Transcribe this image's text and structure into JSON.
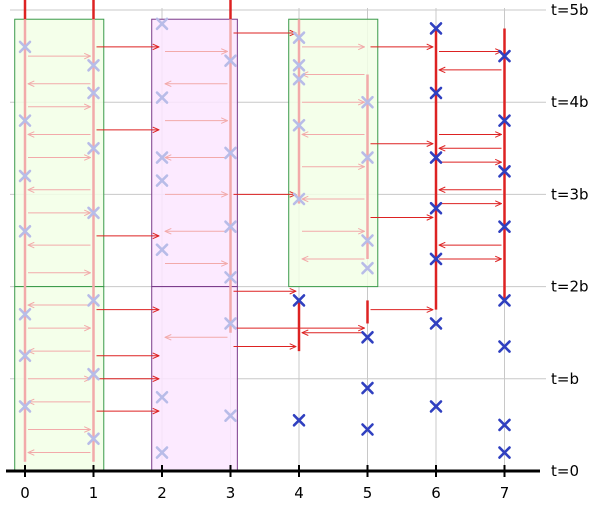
{
  "diagram": {
    "x_axis": {
      "ticks": [
        "0",
        "1",
        "2",
        "3",
        "4",
        "5",
        "6",
        "7"
      ],
      "range": [
        -0.2,
        7.3
      ]
    },
    "time_axis": {
      "labels": [
        {
          "t": 0,
          "text": "t=0"
        },
        {
          "t": 1,
          "text": "t=b"
        },
        {
          "t": 2,
          "text": "t=2b"
        },
        {
          "t": 3,
          "text": "t=3b"
        },
        {
          "t": 4,
          "text": "t=4b"
        },
        {
          "t": 5,
          "text": "t=5b"
        }
      ],
      "range": [
        0,
        5.25
      ]
    },
    "colors": {
      "green_box_fill": "#f2ffe6",
      "green_box_stroke": "#3a9a4a",
      "magenta_box_fill": "#fbe6ff",
      "magenta_box_stroke": "#7a3a8a",
      "event_marker": "#3040c0",
      "event_marker_faded": "#b8bce8",
      "token_line": "#dd2222",
      "token_line_faded": "#f2aaaa",
      "grid": "#c8c8c8",
      "axis": "#000000"
    },
    "boxes": [
      {
        "kind": "green",
        "x0": -0.15,
        "x1": 1.15,
        "t0": 2.0,
        "t1": 4.9
      },
      {
        "kind": "green",
        "x0": -0.15,
        "x1": 1.15,
        "t0": 0.0,
        "t1": 2.0
      },
      {
        "kind": "magenta",
        "x0": 1.85,
        "x1": 3.1,
        "t0": 2.0,
        "t1": 4.9
      },
      {
        "kind": "magenta",
        "x0": 1.85,
        "x1": 3.1,
        "t0": 0.0,
        "t1": 2.0
      },
      {
        "kind": "green",
        "x0": 3.85,
        "x1": 5.15,
        "t0": 2.0,
        "t1": 4.9
      }
    ],
    "events": [
      {
        "x": 0,
        "t": 4.6,
        "faded": true
      },
      {
        "x": 0,
        "t": 3.8,
        "faded": true
      },
      {
        "x": 0,
        "t": 3.2,
        "faded": true
      },
      {
        "x": 0,
        "t": 2.6,
        "faded": true
      },
      {
        "x": 0,
        "t": 1.7,
        "faded": true
      },
      {
        "x": 0,
        "t": 1.25,
        "faded": true
      },
      {
        "x": 0,
        "t": 0.7,
        "faded": true
      },
      {
        "x": 1,
        "t": 4.4,
        "faded": true
      },
      {
        "x": 1,
        "t": 4.1,
        "faded": true
      },
      {
        "x": 1,
        "t": 3.5,
        "faded": true
      },
      {
        "x": 1,
        "t": 2.8,
        "faded": true
      },
      {
        "x": 1,
        "t": 1.85,
        "faded": true
      },
      {
        "x": 1,
        "t": 1.05,
        "faded": true
      },
      {
        "x": 1,
        "t": 0.35,
        "faded": true
      },
      {
        "x": 2,
        "t": 4.85,
        "faded": true
      },
      {
        "x": 2,
        "t": 4.05,
        "faded": true
      },
      {
        "x": 2,
        "t": 3.4,
        "faded": true
      },
      {
        "x": 2,
        "t": 3.15,
        "faded": true
      },
      {
        "x": 2,
        "t": 2.4,
        "faded": true
      },
      {
        "x": 2,
        "t": 0.8,
        "faded": true
      },
      {
        "x": 2,
        "t": 0.2,
        "faded": true
      },
      {
        "x": 3,
        "t": 4.45,
        "faded": true
      },
      {
        "x": 3,
        "t": 3.45,
        "faded": true
      },
      {
        "x": 3,
        "t": 2.65,
        "faded": true
      },
      {
        "x": 3,
        "t": 2.1,
        "faded": true
      },
      {
        "x": 3,
        "t": 1.6,
        "faded": true
      },
      {
        "x": 3,
        "t": 0.6,
        "faded": true
      },
      {
        "x": 4,
        "t": 4.7,
        "faded": true
      },
      {
        "x": 4,
        "t": 4.4,
        "faded": true
      },
      {
        "x": 4,
        "t": 4.25,
        "faded": true
      },
      {
        "x": 4,
        "t": 3.75,
        "faded": true
      },
      {
        "x": 4,
        "t": 2.95,
        "faded": true
      },
      {
        "x": 5,
        "t": 4.0,
        "faded": true
      },
      {
        "x": 5,
        "t": 3.4,
        "faded": true
      },
      {
        "x": 5,
        "t": 2.5,
        "faded": true
      },
      {
        "x": 5,
        "t": 2.2,
        "faded": true
      },
      {
        "x": 4,
        "t": 1.85,
        "faded": false
      },
      {
        "x": 4,
        "t": 0.55,
        "faded": false
      },
      {
        "x": 5,
        "t": 1.45,
        "faded": false
      },
      {
        "x": 5,
        "t": 0.9,
        "faded": false
      },
      {
        "x": 5,
        "t": 0.45,
        "faded": false
      },
      {
        "x": 6,
        "t": 4.8,
        "faded": false
      },
      {
        "x": 6,
        "t": 4.1,
        "faded": false
      },
      {
        "x": 6,
        "t": 3.4,
        "faded": false
      },
      {
        "x": 6,
        "t": 2.85,
        "faded": false
      },
      {
        "x": 6,
        "t": 2.3,
        "faded": false
      },
      {
        "x": 6,
        "t": 1.6,
        "faded": false
      },
      {
        "x": 6,
        "t": 0.7,
        "faded": false
      },
      {
        "x": 7,
        "t": 4.5,
        "faded": false
      },
      {
        "x": 7,
        "t": 3.8,
        "faded": false
      },
      {
        "x": 7,
        "t": 3.25,
        "faded": false
      },
      {
        "x": 7,
        "t": 2.65,
        "faded": false
      },
      {
        "x": 7,
        "t": 1.85,
        "faded": false
      },
      {
        "x": 7,
        "t": 1.35,
        "faded": false
      },
      {
        "x": 7,
        "t": 0.5,
        "faded": false
      },
      {
        "x": 7,
        "t": 0.2,
        "faded": false
      }
    ],
    "token_segments": [
      {
        "x": 0,
        "t0": 4.9,
        "t1": 5.2,
        "faded": false
      },
      {
        "x": 1,
        "t0": 4.9,
        "t1": 5.2,
        "faded": false
      },
      {
        "x": 3,
        "t0": 4.9,
        "t1": 5.2,
        "faded": false
      },
      {
        "x": 0,
        "t0": 0.1,
        "t1": 4.9,
        "faded": true
      },
      {
        "x": 1,
        "t0": 0.1,
        "t1": 4.9,
        "faded": true
      },
      {
        "x": 3,
        "t0": 1.5,
        "t1": 4.9,
        "faded": true
      },
      {
        "x": 4,
        "t0": 2.9,
        "t1": 4.9,
        "faded": true
      },
      {
        "x": 5,
        "t0": 2.3,
        "t1": 4.3,
        "faded": true
      },
      {
        "x": 4,
        "t0": 1.3,
        "t1": 1.85,
        "faded": false
      },
      {
        "x": 5,
        "t0": 1.6,
        "t1": 1.85,
        "faded": false
      },
      {
        "x": 6,
        "t0": 1.75,
        "t1": 4.8,
        "faded": false
      },
      {
        "x": 7,
        "t0": 1.85,
        "t1": 4.8,
        "faded": false
      }
    ],
    "messages": [
      {
        "from": 1,
        "to": 2,
        "t": 4.6,
        "faded": false
      },
      {
        "from": 1,
        "to": 2,
        "t": 3.7,
        "faded": false
      },
      {
        "from": 1,
        "to": 2,
        "t": 2.55,
        "faded": false
      },
      {
        "from": 1,
        "to": 2,
        "t": 1.75,
        "faded": false
      },
      {
        "from": 1,
        "to": 2,
        "t": 1.25,
        "faded": false
      },
      {
        "from": 1,
        "to": 2,
        "t": 1.0,
        "faded": false
      },
      {
        "from": 1,
        "to": 2,
        "t": 0.65,
        "faded": false
      },
      {
        "from": 3,
        "to": 4,
        "t": 4.75,
        "faded": false
      },
      {
        "from": 3,
        "to": 4,
        "t": 3.0,
        "faded": false
      },
      {
        "from": 3,
        "to": 4,
        "t": 1.95,
        "faded": false
      },
      {
        "from": 3,
        "to": 4,
        "t": 1.35,
        "faded": false
      },
      {
        "from": 5,
        "to": 4,
        "t": 1.5,
        "faded": false
      },
      {
        "from": 3,
        "to": 5,
        "t": 1.55,
        "faded": false
      },
      {
        "from": 5,
        "to": 6,
        "t": 4.6,
        "faded": false
      },
      {
        "from": 5,
        "to": 6,
        "t": 3.55,
        "faded": false
      },
      {
        "from": 5,
        "to": 6,
        "t": 2.75,
        "faded": false
      },
      {
        "from": 5,
        "to": 6,
        "t": 1.75,
        "faded": false
      },
      {
        "from": 6,
        "to": 7,
        "t": 4.55,
        "faded": false
      },
      {
        "from": 7,
        "to": 6,
        "t": 4.35,
        "faded": false
      },
      {
        "from": 6,
        "to": 7,
        "t": 3.65,
        "faded": false
      },
      {
        "from": 7,
        "to": 6,
        "t": 3.5,
        "faded": false
      },
      {
        "from": 6,
        "to": 7,
        "t": 3.35,
        "faded": false
      },
      {
        "from": 7,
        "to": 6,
        "t": 3.05,
        "faded": false
      },
      {
        "from": 6,
        "to": 7,
        "t": 2.9,
        "faded": false
      },
      {
        "from": 7,
        "to": 6,
        "t": 2.45,
        "faded": false
      },
      {
        "from": 6,
        "to": 7,
        "t": 2.3,
        "faded": false
      },
      {
        "from": 0,
        "to": 1,
        "t": 4.5,
        "faded": true
      },
      {
        "from": 1,
        "to": 0,
        "t": 4.2,
        "faded": true
      },
      {
        "from": 0,
        "to": 1,
        "t": 3.95,
        "faded": true
      },
      {
        "from": 1,
        "to": 0,
        "t": 3.65,
        "faded": true
      },
      {
        "from": 0,
        "to": 1,
        "t": 3.4,
        "faded": true
      },
      {
        "from": 1,
        "to": 0,
        "t": 3.05,
        "faded": true
      },
      {
        "from": 0,
        "to": 1,
        "t": 2.8,
        "faded": true
      },
      {
        "from": 1,
        "to": 0,
        "t": 2.45,
        "faded": true
      },
      {
        "from": 0,
        "to": 1,
        "t": 2.15,
        "faded": true
      },
      {
        "from": 1,
        "to": 0,
        "t": 1.8,
        "faded": true
      },
      {
        "from": 0,
        "to": 1,
        "t": 1.55,
        "faded": true
      },
      {
        "from": 1,
        "to": 0,
        "t": 1.3,
        "faded": true
      },
      {
        "from": 0,
        "to": 1,
        "t": 1.0,
        "faded": true
      },
      {
        "from": 1,
        "to": 0,
        "t": 0.75,
        "faded": true
      },
      {
        "from": 0,
        "to": 1,
        "t": 0.45,
        "faded": true
      },
      {
        "from": 1,
        "to": 0,
        "t": 0.2,
        "faded": true
      },
      {
        "from": 2,
        "to": 3,
        "t": 4.55,
        "faded": true
      },
      {
        "from": 3,
        "to": 2,
        "t": 4.2,
        "faded": true
      },
      {
        "from": 2,
        "to": 3,
        "t": 3.8,
        "faded": true
      },
      {
        "from": 3,
        "to": 2,
        "t": 3.4,
        "faded": true
      },
      {
        "from": 2,
        "to": 3,
        "t": 3.0,
        "faded": true
      },
      {
        "from": 3,
        "to": 2,
        "t": 2.6,
        "faded": true
      },
      {
        "from": 2,
        "to": 3,
        "t": 2.25,
        "faded": true
      },
      {
        "from": 3,
        "to": 2,
        "t": 1.45,
        "faded": true
      },
      {
        "from": 4,
        "to": 5,
        "t": 4.6,
        "faded": true
      },
      {
        "from": 5,
        "to": 4,
        "t": 4.3,
        "faded": true
      },
      {
        "from": 4,
        "to": 5,
        "t": 4.0,
        "faded": true
      },
      {
        "from": 5,
        "to": 4,
        "t": 3.65,
        "faded": true
      },
      {
        "from": 4,
        "to": 5,
        "t": 3.3,
        "faded": true
      },
      {
        "from": 5,
        "to": 4,
        "t": 2.95,
        "faded": true
      },
      {
        "from": 4,
        "to": 5,
        "t": 2.6,
        "faded": true
      },
      {
        "from": 5,
        "to": 4,
        "t": 2.3,
        "faded": true
      }
    ]
  }
}
